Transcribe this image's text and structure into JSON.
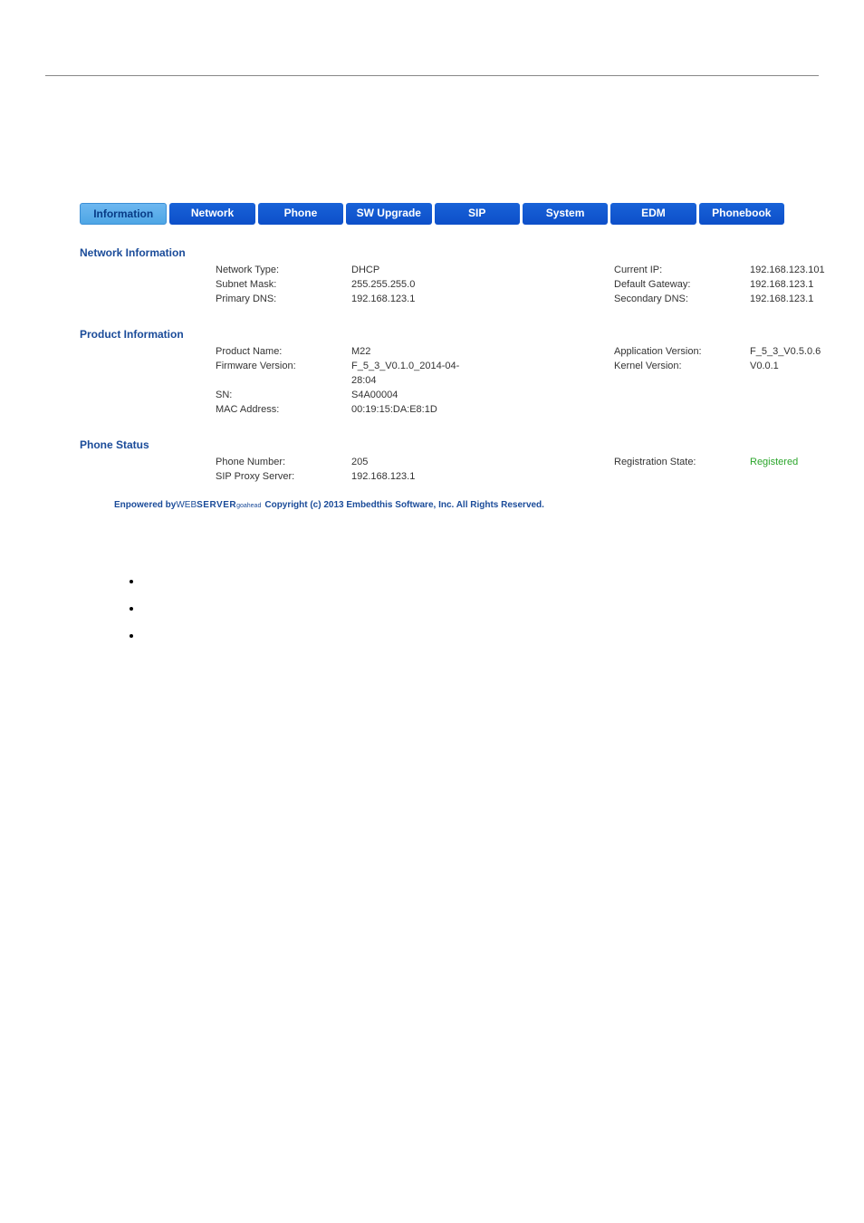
{
  "tabs": [
    {
      "label": "Information",
      "active": true
    },
    {
      "label": "Network",
      "active": false
    },
    {
      "label": "Phone",
      "active": false
    },
    {
      "label": "SW Upgrade",
      "active": false
    },
    {
      "label": "SIP",
      "active": false
    },
    {
      "label": "System",
      "active": false
    },
    {
      "label": "EDM",
      "active": false
    },
    {
      "label": "Phonebook",
      "active": false
    }
  ],
  "sections": {
    "network": {
      "title": "Network Information",
      "rows": [
        {
          "l1": "Network Type:",
          "v1": "DHCP",
          "l2": "Current IP:",
          "v2": "192.168.123.101"
        },
        {
          "l1": "Subnet Mask:",
          "v1": "255.255.255.0",
          "l2": "Default Gateway:",
          "v2": "192.168.123.1"
        },
        {
          "l1": "Primary DNS:",
          "v1": "192.168.123.1",
          "l2": "Secondary DNS:",
          "v2": "192.168.123.1"
        }
      ]
    },
    "product": {
      "title": "Product Information",
      "rows": [
        {
          "l1": "Product Name:",
          "v1": "M22",
          "l2": "Application Version:",
          "v2": "F_5_3_V0.5.0.6"
        },
        {
          "l1": "Firmware Version:",
          "v1": "F_5_3_V0.1.0_2014-04-28:04",
          "l2": "Kernel Version:",
          "v2": "V0.0.1"
        },
        {
          "l1": "SN:",
          "v1": "S4A00004",
          "l2": "",
          "v2": ""
        },
        {
          "l1": "MAC Address:",
          "v1": "00:19:15:DA:E8:1D",
          "l2": "",
          "v2": ""
        }
      ]
    },
    "phone": {
      "title": "Phone Status",
      "rows": [
        {
          "l1": "Phone Number:",
          "v1": "205",
          "l2": "Registration State:",
          "v2": "Registered",
          "v2green": true
        },
        {
          "l1": "SIP Proxy Server:",
          "v1": "192.168.123.1",
          "l2": "",
          "v2": ""
        }
      ]
    }
  },
  "footer": {
    "poweredby": "Enpowered by ",
    "logo_thin": "WEB",
    "logo_bold": "SERVER",
    "goahead": "goahead",
    "copy": "Copyright (c) 2013 Embedthis Software, Inc. All Rights Reserved."
  },
  "colors": {
    "tab_active_bg": "#5aaee9",
    "tab_inactive_bg": "#1258d0",
    "section_title": "#1a4b99",
    "registered": "#2aa52a"
  }
}
